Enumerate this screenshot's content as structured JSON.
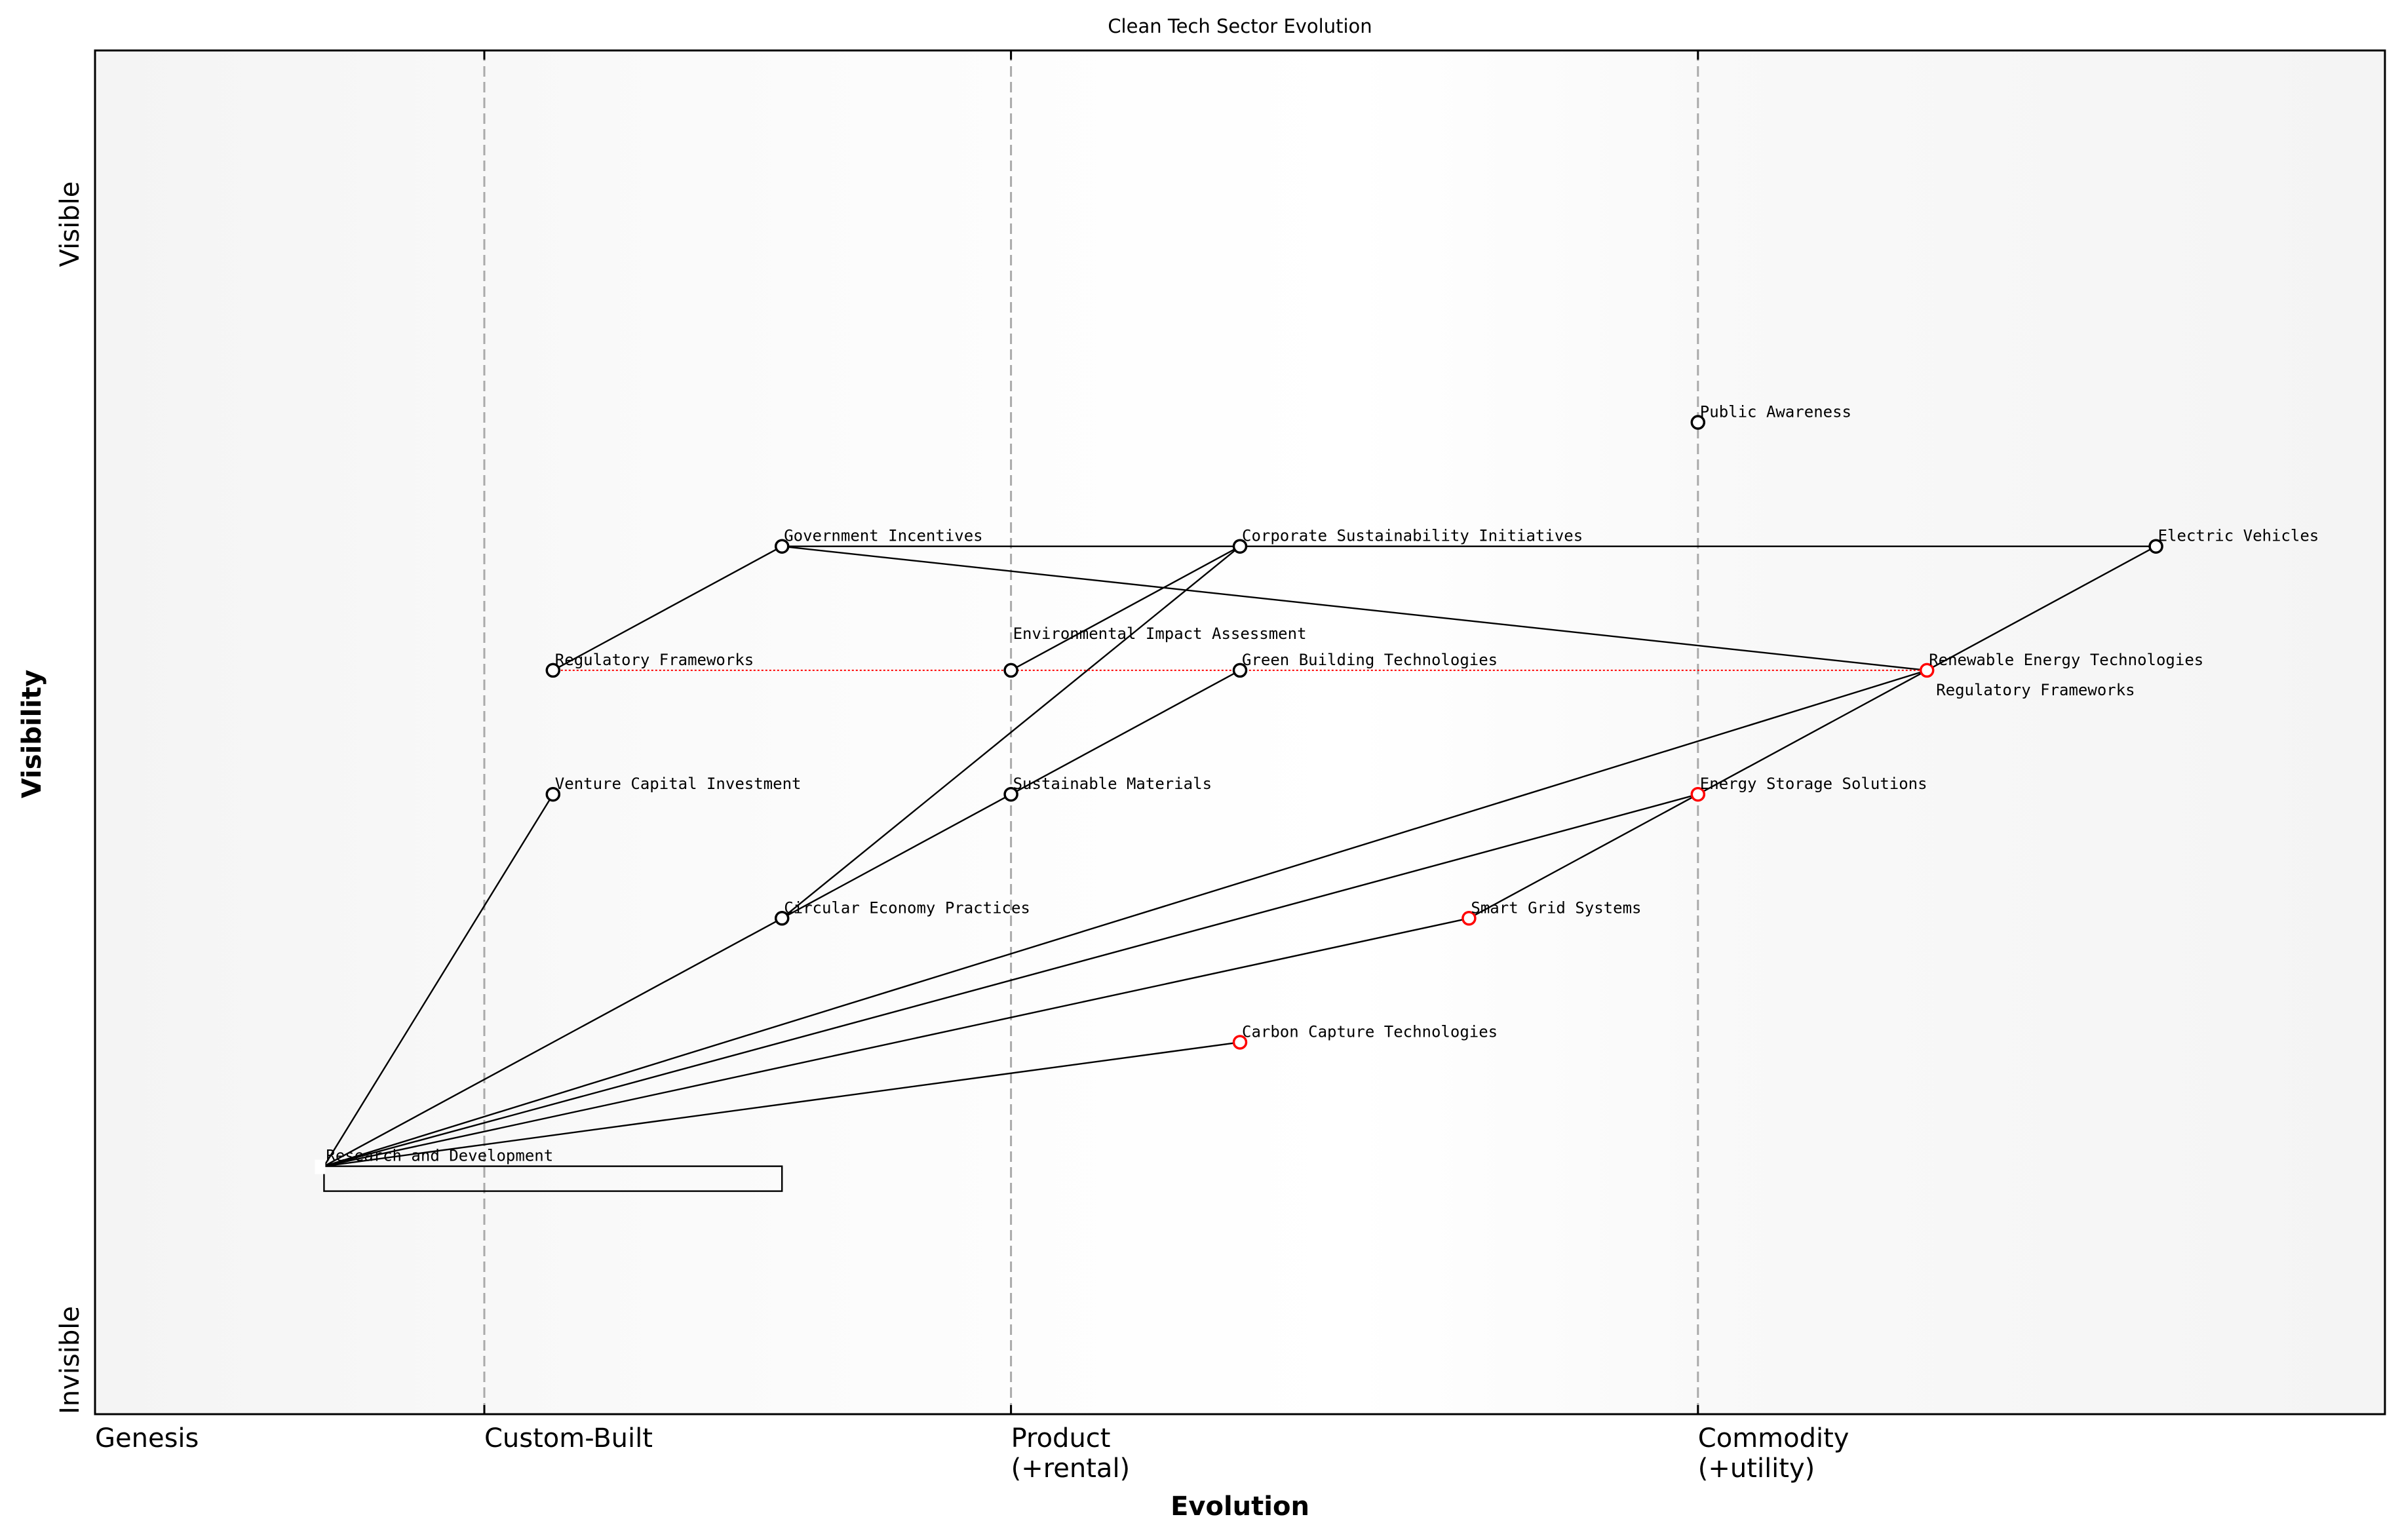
{
  "title": "Clean Tech Sector Evolution",
  "x_axis": {
    "label": "Evolution",
    "stages": [
      {
        "name": "Genesis",
        "at": 0.0
      },
      {
        "name": "Custom-Built",
        "at": 0.17
      },
      {
        "name": "Product\n(+rental)",
        "at": 0.4
      },
      {
        "name": "Commodity\n(+utility)",
        "at": 0.7
      }
    ],
    "range": [
      0,
      1
    ]
  },
  "y_axis": {
    "label": "Visibility",
    "top_label": "Visible",
    "bottom_label": "Invisible",
    "range": [
      0,
      1.1
    ]
  },
  "colors": {
    "node": "#000000",
    "evolving_node": "#ff0000",
    "evolve_line": "#ff0000",
    "stage_line": "#aaaaaa",
    "band_edge": "#f4f4f4",
    "band_mid": "#ffffff"
  },
  "nodes": [
    {
      "id": "pa",
      "name": "Public Awareness",
      "evolution": 0.7,
      "visibility": 0.8,
      "evolving": false
    },
    {
      "id": "gi",
      "name": "Government Incentives",
      "evolution": 0.3,
      "visibility": 0.7,
      "evolving": false
    },
    {
      "id": "csi",
      "name": "Corporate Sustainability Initiatives",
      "evolution": 0.5,
      "visibility": 0.7,
      "evolving": false
    },
    {
      "id": "ev",
      "name": "Electric Vehicles",
      "evolution": 0.9,
      "visibility": 0.7,
      "evolving": false
    },
    {
      "id": "rf",
      "name": "Regulatory Frameworks",
      "evolution": 0.2,
      "visibility": 0.6,
      "evolving": false
    },
    {
      "id": "eia",
      "name": "Environmental Impact Assessment",
      "evolution": 0.4,
      "visibility": 0.6,
      "evolving": false
    },
    {
      "id": "gbt",
      "name": "Green Building Technologies",
      "evolution": 0.5,
      "visibility": 0.6,
      "evolving": false
    },
    {
      "id": "ret",
      "name": "Renewable Energy Technologies",
      "evolution": 0.8,
      "visibility": 0.6,
      "evolving": true
    },
    {
      "id": "vci",
      "name": "Venture Capital Investment",
      "evolution": 0.2,
      "visibility": 0.5,
      "evolving": false
    },
    {
      "id": "sm",
      "name": "Sustainable Materials",
      "evolution": 0.4,
      "visibility": 0.5,
      "evolving": false
    },
    {
      "id": "ess",
      "name": "Energy Storage Solutions",
      "evolution": 0.7,
      "visibility": 0.5,
      "evolving": true
    },
    {
      "id": "cep",
      "name": "Circular Economy Practices",
      "evolution": 0.3,
      "visibility": 0.4,
      "evolving": false
    },
    {
      "id": "sgs",
      "name": "Smart Grid Systems",
      "evolution": 0.6,
      "visibility": 0.4,
      "evolving": true
    },
    {
      "id": "cct",
      "name": "Carbon Capture Technologies",
      "evolution": 0.5,
      "visibility": 0.3,
      "evolving": true
    },
    {
      "id": "rd",
      "name": "Research and Development",
      "evolution": 0.1,
      "visibility": 0.2,
      "evolving": false
    }
  ],
  "edges": [
    [
      "rd",
      "vci"
    ],
    [
      "rd",
      "cep"
    ],
    [
      "rd",
      "ret"
    ],
    [
      "rd",
      "ess"
    ],
    [
      "rd",
      "sgs"
    ],
    [
      "rd",
      "cct"
    ],
    [
      "rf",
      "gi"
    ],
    [
      "gi",
      "ev"
    ],
    [
      "gi",
      "ret"
    ],
    [
      "csi",
      "eia"
    ],
    [
      "csi",
      "cep"
    ],
    [
      "gbt",
      "sm"
    ],
    [
      "sm",
      "cep"
    ],
    [
      "ev",
      "ret"
    ],
    [
      "ret",
      "ess"
    ],
    [
      "ess",
      "sgs"
    ]
  ],
  "evolve": [
    {
      "from": "rf",
      "name": "Regulatory Frameworks",
      "to_evolution": 0.8,
      "visibility": 0.6
    }
  ],
  "pipelines": [
    {
      "node": "rd",
      "start": 0.1,
      "end": 0.3
    }
  ]
}
